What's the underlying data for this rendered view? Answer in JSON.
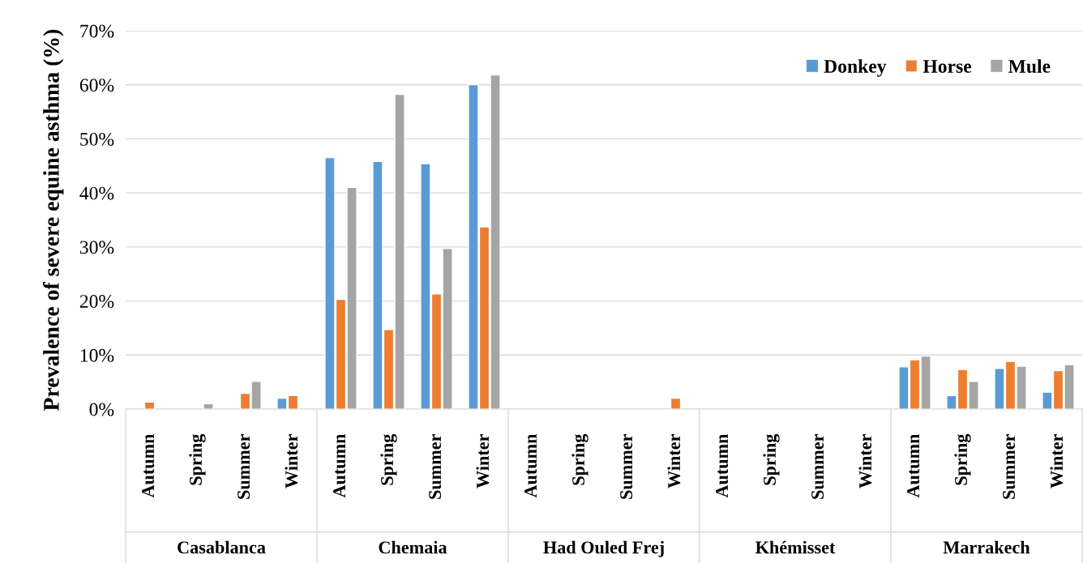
{
  "chart_data": {
    "type": "bar",
    "ylabel": "Prevalence of severe equine asthma (%)",
    "categories": [
      "Autumn",
      "Spring",
      "Summer",
      "Winter",
      "Autumn",
      "Spring",
      "Summer",
      "Winter",
      "Autumn",
      "Spring",
      "Summer",
      "Winter",
      "Autumn",
      "Spring",
      "Summer",
      "Winter",
      "Autumn",
      "Spring",
      "Summer",
      "Winter"
    ],
    "annotations": [
      "Casablanca",
      "Chemaia",
      "Had Ouled Frej",
      "Khémisset",
      "Marrakech"
    ],
    "series": [
      {
        "name": "Donkey",
        "color": "#5b9bd5",
        "values": [
          0,
          0,
          0,
          2.0,
          46.5,
          45.8,
          45.4,
          60.0,
          0,
          0,
          0,
          0,
          0,
          0,
          0,
          0,
          7.8,
          2.5,
          7.5,
          3.1
        ]
      },
      {
        "name": "Horse",
        "color": "#ed7d31",
        "values": [
          1.3,
          0,
          2.9,
          2.5,
          20.3,
          14.7,
          21.3,
          33.7,
          0,
          0,
          0,
          2.0,
          0,
          0,
          0,
          0,
          9.1,
          7.3,
          8.8,
          7.1
        ]
      },
      {
        "name": "Mule",
        "color": "#a5a5a5",
        "values": [
          0,
          1.0,
          5.1,
          0,
          41.0,
          58.2,
          29.7,
          61.8,
          0,
          0,
          0,
          0,
          0,
          0,
          0,
          0,
          9.8,
          5.1,
          7.9,
          8.2
        ]
      }
    ],
    "ylim": [
      0,
      70
    ],
    "yticks": [
      {
        "value": 0,
        "label": "0%"
      },
      {
        "value": 10,
        "label": "10%"
      },
      {
        "value": 20,
        "label": "20%"
      },
      {
        "value": 30,
        "label": "30%"
      },
      {
        "value": 40,
        "label": "40%"
      },
      {
        "value": 50,
        "label": "50%"
      },
      {
        "value": 60,
        "label": "60%"
      },
      {
        "value": 70,
        "label": "70%"
      }
    ],
    "grid": "y",
    "legend": "top right"
  }
}
